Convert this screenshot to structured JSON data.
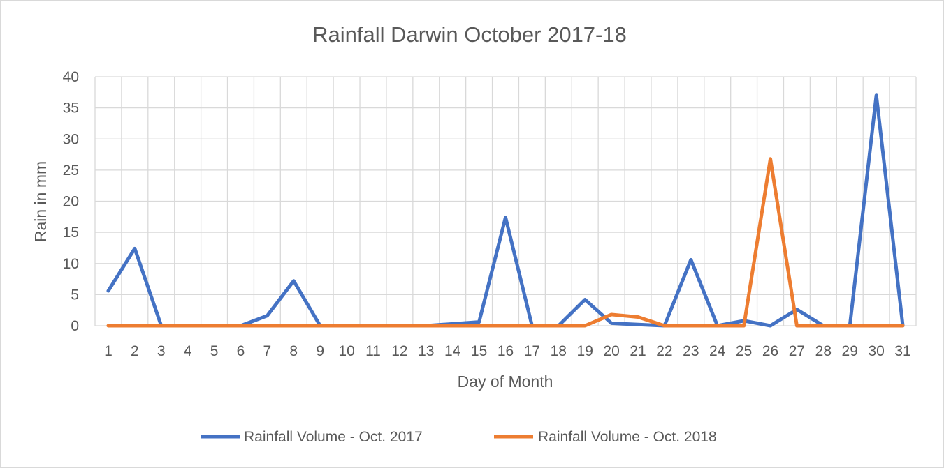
{
  "chart_data": {
    "type": "line",
    "title": "Rainfall Darwin October 2017-18",
    "xlabel": "Day of Month",
    "ylabel": "Rain in mm",
    "ylim": [
      0,
      40
    ],
    "yticks": [
      0,
      5,
      10,
      15,
      20,
      25,
      30,
      35,
      40
    ],
    "grid": true,
    "legend_position": "bottom",
    "categories": [
      "1",
      "2",
      "3",
      "4",
      "5",
      "6",
      "7",
      "8",
      "9",
      "10",
      "11",
      "12",
      "13",
      "14",
      "15",
      "16",
      "17",
      "18",
      "19",
      "20",
      "21",
      "22",
      "23",
      "24",
      "25",
      "26",
      "27",
      "28",
      "29",
      "30",
      "31"
    ],
    "series": [
      {
        "name": "Rainfall Volume - Oct. 2017",
        "color": "#4472c4",
        "values": [
          5.6,
          12.4,
          0,
          0,
          0,
          0,
          1.6,
          7.2,
          0,
          0,
          0,
          0,
          0,
          0.3,
          0.6,
          17.4,
          0,
          0,
          4.2,
          0.4,
          0.2,
          0,
          10.6,
          0,
          0.8,
          0,
          2.6,
          0,
          0,
          37,
          0
        ]
      },
      {
        "name": "Rainfall Volume - Oct. 2018",
        "color": "#ed7d31",
        "values": [
          0,
          0,
          0,
          0,
          0,
          0,
          0,
          0,
          0,
          0,
          0,
          0,
          0,
          0,
          0,
          0,
          0,
          0,
          0,
          1.8,
          1.4,
          0,
          0,
          0,
          0,
          26.8,
          0,
          0,
          0,
          0,
          0
        ]
      }
    ]
  }
}
